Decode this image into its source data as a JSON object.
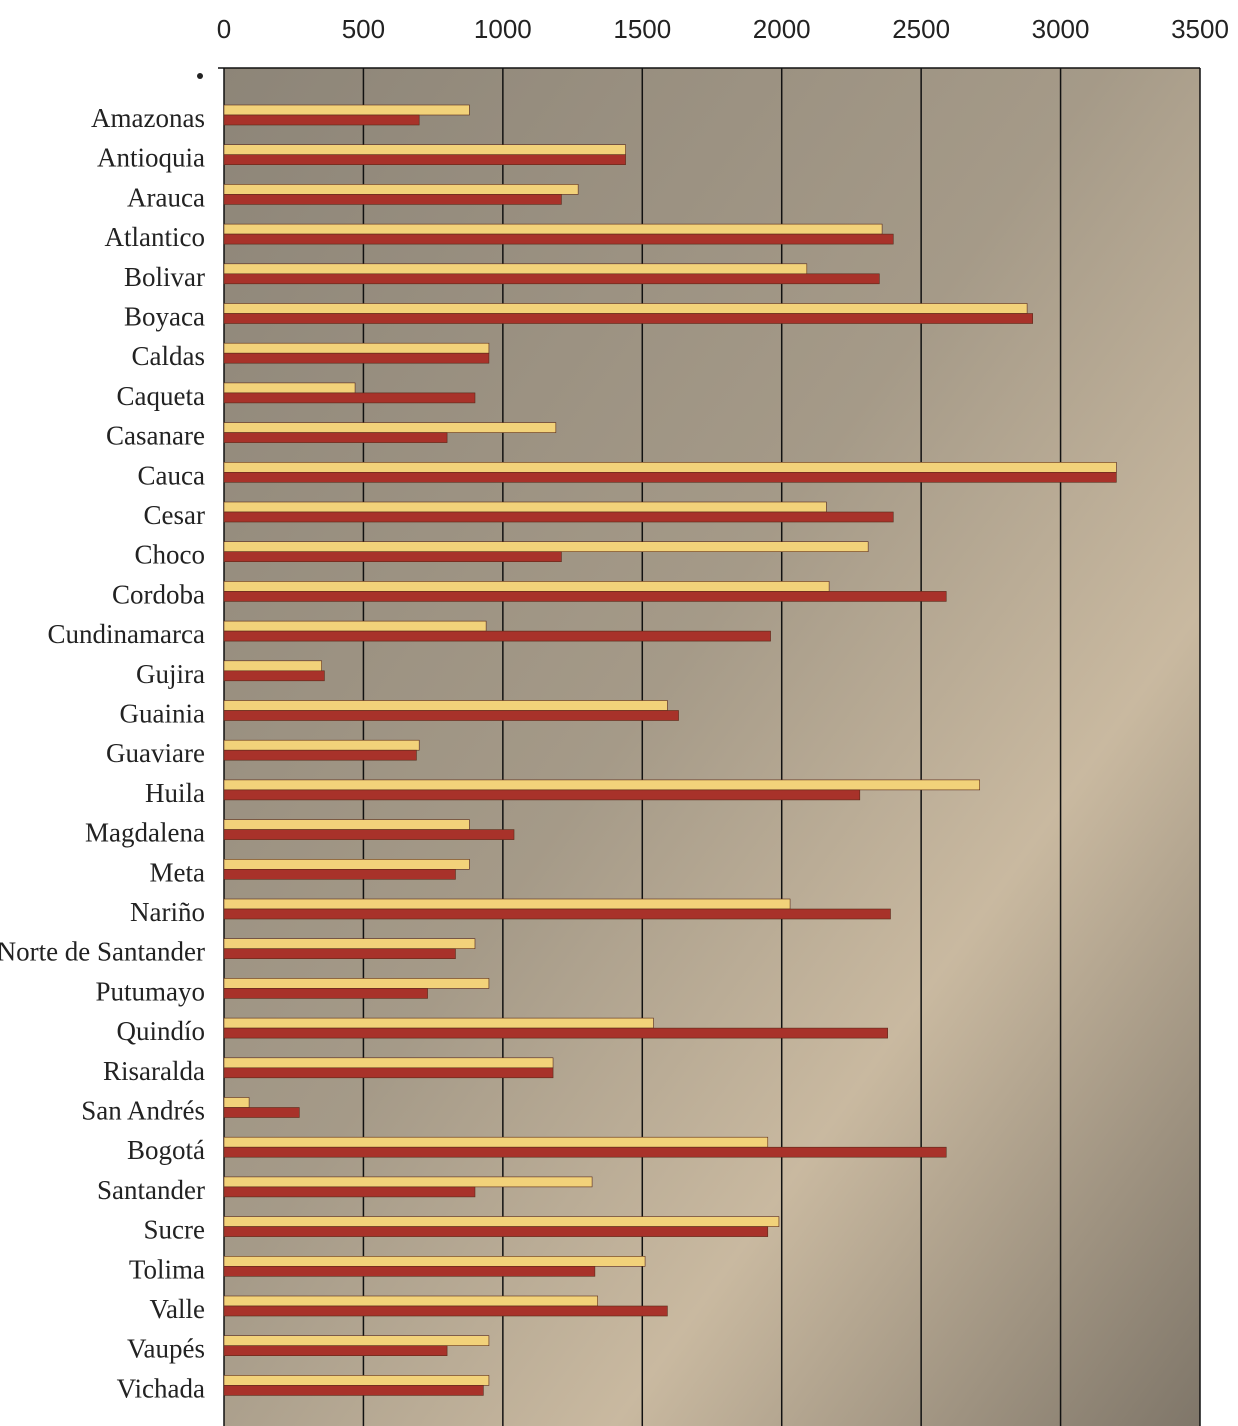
{
  "chart_data": {
    "type": "bar",
    "orientation": "horizontal",
    "categories": [
      "Amazonas",
      "Antioquia",
      "Arauca",
      "Atlantico",
      "Bolivar",
      "Boyaca",
      "Caldas",
      "Caqueta",
      "Casanare",
      "Cauca",
      "Cesar",
      "Choco",
      "Cordoba",
      "Cundinamarca",
      "Gujira",
      "Guainia",
      "Guaviare",
      "Huila",
      "Magdalena",
      "Meta",
      "Nariño",
      "Norte de Santander",
      "Putumayo",
      "Quindío",
      "Risaralda",
      "San Andrés",
      "Bogotá",
      "Santander",
      "Sucre",
      "Tolima",
      "Valle",
      "Vaupés",
      "Vichada"
    ],
    "series": [
      {
        "color": "#f2d27a",
        "values": [
          880,
          1440,
          1270,
          2360,
          2090,
          2880,
          950,
          470,
          1190,
          3200,
          2160,
          2310,
          2170,
          940,
          350,
          1590,
          700,
          2710,
          880,
          880,
          2030,
          900,
          950,
          1540,
          1180,
          90,
          1950,
          1320,
          1990,
          1510,
          1340,
          950,
          950
        ]
      },
      {
        "color": "#a8322a",
        "values": [
          700,
          1440,
          1210,
          2400,
          2350,
          2900,
          950,
          900,
          800,
          3200,
          2400,
          1210,
          2590,
          1960,
          360,
          1630,
          690,
          2280,
          1040,
          830,
          2390,
          830,
          730,
          2380,
          1180,
          270,
          2590,
          900,
          1950,
          1330,
          1590,
          800,
          930
        ]
      }
    ],
    "xlim": [
      0,
      3500
    ],
    "xticks": [
      0,
      500,
      1000,
      1500,
      2000,
      2500,
      3000,
      3500
    ],
    "grid": true
  }
}
